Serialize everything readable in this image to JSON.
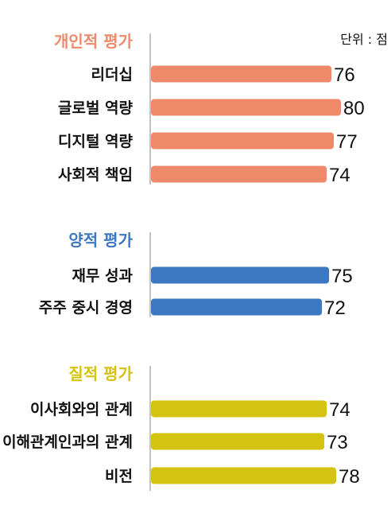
{
  "chart_data": {
    "type": "bar",
    "orientation": "horizontal",
    "unit_label": "단위 : 점",
    "xlim": [
      0,
      80
    ],
    "grid": false,
    "groups": [
      {
        "name": "개인적 평가",
        "color": "#ee8a6a",
        "categories": [
          "리더십",
          "글로벌 역량",
          "디지털 역량",
          "사회적 책임"
        ],
        "values": [
          76,
          80,
          77,
          74
        ]
      },
      {
        "name": "양적 평가",
        "color": "#3b78c0",
        "categories": [
          "재무 성과",
          "주주 중시 경영"
        ],
        "values": [
          75,
          72
        ]
      },
      {
        "name": "질적 평가",
        "color": "#d4c310",
        "categories": [
          "이사회와의 관계",
          "이해관계인과의 관계",
          "비전"
        ],
        "values": [
          74,
          73,
          78
        ]
      }
    ]
  }
}
